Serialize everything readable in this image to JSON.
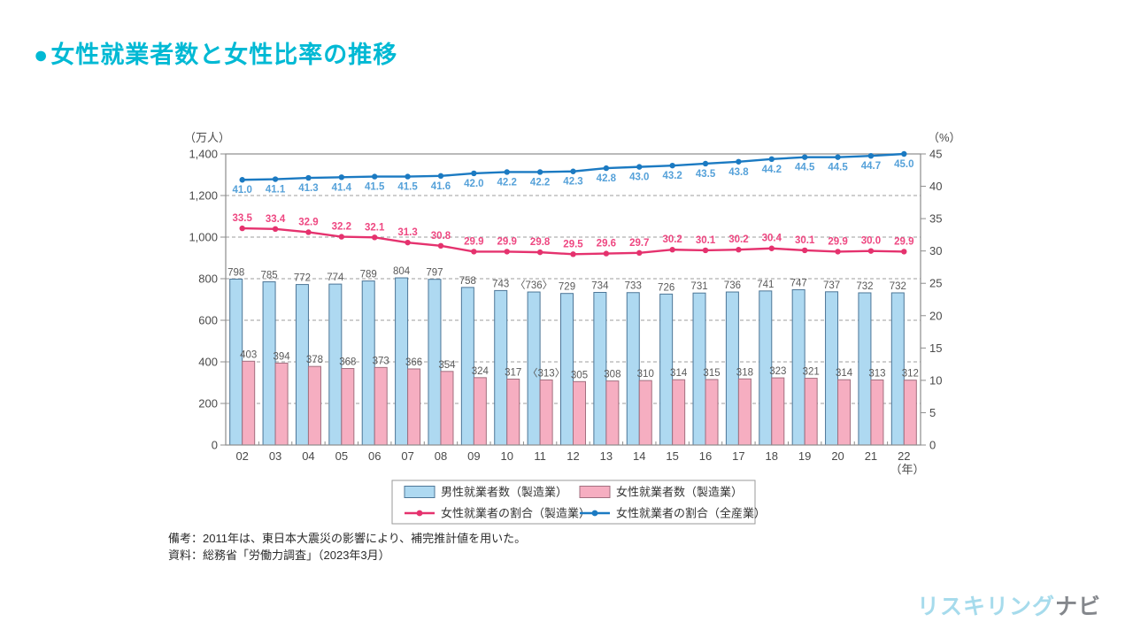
{
  "page": {
    "title_bullet": "●",
    "title": "女性就業者数と女性比率の推移",
    "title_color": "#00b9d4"
  },
  "notes": {
    "remark": "備考：2011年は、東日本大震災の影響により、補完推計値を用いた。",
    "source": "資料：総務省「労働力調査」（2023年3月）"
  },
  "logo": {
    "part1": "リスキリング",
    "part2": "ナビ",
    "color1": "#a6dbec",
    "color2": "#84878c"
  },
  "chart_data": {
    "type": "bar+line",
    "title": "女性就業者数と女性比率の推移",
    "categories": [
      "02",
      "03",
      "04",
      "05",
      "06",
      "07",
      "08",
      "09",
      "10",
      "11",
      "12",
      "13",
      "14",
      "15",
      "16",
      "17",
      "18",
      "19",
      "20",
      "21",
      "22"
    ],
    "x_axis_unit": "（年）",
    "left_axis": {
      "unit": "（万人）",
      "min": 0,
      "max": 1400,
      "step": 200
    },
    "right_axis": {
      "unit": "（%）",
      "min": 0,
      "max": 45,
      "step": 5
    },
    "grid": "dashed horizontal lines at each left-axis step",
    "legend_position": "bottom",
    "series": [
      {
        "name": "男性就業者数（製造業）",
        "type": "bar",
        "axis": "left",
        "fill": "#aed9f1",
        "stroke": "#4d7697",
        "values": [
          798,
          785,
          772,
          774,
          789,
          804,
          797,
          758,
          743,
          736,
          729,
          734,
          733,
          726,
          731,
          736,
          741,
          747,
          737,
          732,
          732
        ],
        "labels": [
          "798",
          "785",
          "772",
          "774",
          "789",
          "804",
          "797",
          "758",
          "743",
          "〈736〉",
          "729",
          "734",
          "733",
          "726",
          "731",
          "736",
          "741",
          "747",
          "737",
          "732",
          "732"
        ]
      },
      {
        "name": "女性就業者数（製造業）",
        "type": "bar",
        "axis": "left",
        "fill": "#f6aec1",
        "stroke": "#a26f7f",
        "values": [
          403,
          394,
          378,
          368,
          373,
          366,
          354,
          324,
          317,
          313,
          305,
          308,
          310,
          314,
          315,
          318,
          323,
          321,
          314,
          313,
          312
        ],
        "labels": [
          "403",
          "394",
          "378",
          "368",
          "373",
          "366",
          "354",
          "324",
          "317",
          "〈313〉",
          "305",
          "308",
          "310",
          "314",
          "315",
          "318",
          "323",
          "321",
          "314",
          "313",
          "312"
        ]
      },
      {
        "name": "女性就業者の割合（製造業）",
        "type": "line",
        "axis": "right",
        "color": "#e5326e",
        "label_color": "#ee4781",
        "label_side": "above",
        "values": [
          33.5,
          33.4,
          32.9,
          32.2,
          32.1,
          31.3,
          30.8,
          29.9,
          29.9,
          29.8,
          29.5,
          29.6,
          29.7,
          30.2,
          30.1,
          30.2,
          30.4,
          30.1,
          29.9,
          30.0,
          29.9
        ]
      },
      {
        "name": "女性就業者の割合（全産業）",
        "type": "line",
        "axis": "right",
        "color": "#1b7ac2",
        "label_color": "#55a1d9",
        "label_side": "below",
        "values": [
          41.0,
          41.1,
          41.3,
          41.4,
          41.5,
          41.5,
          41.6,
          42.0,
          42.2,
          42.2,
          42.3,
          42.8,
          43.0,
          43.2,
          43.5,
          43.8,
          44.2,
          44.5,
          44.5,
          44.7,
          45.0
        ]
      }
    ]
  }
}
